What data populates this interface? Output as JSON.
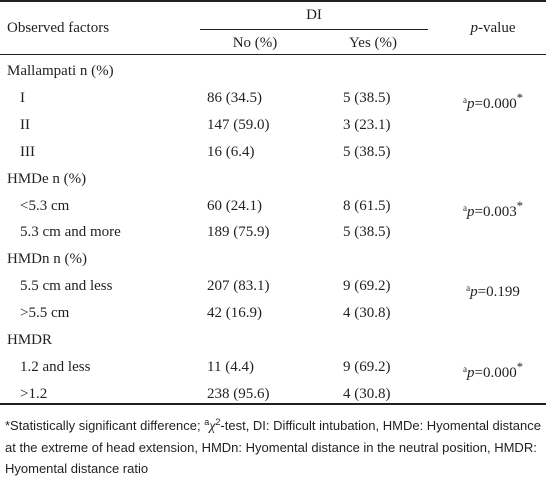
{
  "table": {
    "headers": {
      "observed_factors": "Observed factors",
      "di": "DI",
      "no": "No (%)",
      "yes": "Yes (%)",
      "pvalue_italic": "p",
      "pvalue_rest": "-value"
    },
    "groups": [
      {
        "label": "Mallampati n (%)",
        "rows": [
          {
            "label": "I",
            "no": "86 (34.5)",
            "yes": "5 (38.5)"
          },
          {
            "label": "II",
            "no": "147 (59.0)",
            "yes": "3 (23.1)"
          },
          {
            "label": "III",
            "no": "16 (6.4)",
            "yes": "5 (38.5)"
          }
        ],
        "p": {
          "sup": "a",
          "var": "p",
          "value": "=0.000",
          "star": "*"
        }
      },
      {
        "label": "HMDe n (%)",
        "rows": [
          {
            "label": "<5.3 cm",
            "no": "60 (24.1)",
            "yes": "8 (61.5)"
          },
          {
            "label": "5.3 cm and more",
            "no": "189 (75.9)",
            "yes": "5 (38.5)"
          }
        ],
        "p": {
          "sup": "a",
          "var": "p",
          "value": "=0.003",
          "star": "*"
        }
      },
      {
        "label": "HMDn n (%)",
        "rows": [
          {
            "label": "5.5 cm and less",
            "no": "207 (83.1)",
            "yes": "9 (69.2)"
          },
          {
            "label": ">5.5 cm",
            "no": "42 (16.9)",
            "yes": "4 (30.8)"
          }
        ],
        "p": {
          "sup": "a",
          "var": "p",
          "value": "=0.199",
          "star": ""
        }
      },
      {
        "label": "HMDR",
        "rows": [
          {
            "label": "1.2 and less",
            "no": "11 (4.4)",
            "yes": "9 (69.2)"
          },
          {
            "label": ">1.2",
            "no": "238 (95.6)",
            "yes": "4 (30.8)"
          }
        ],
        "p": {
          "sup": "a",
          "var": "p",
          "value": "=0.000",
          "star": "*"
        }
      }
    ]
  },
  "footnote": {
    "part1": "*Statistically significant difference; ",
    "sup_a": "a",
    "chi": "χ",
    "sup_2": "2",
    "part2": "-test, DI: Difficult intubation, HMDe: Hyomental distance at the extreme of head extension, HMDn:  Hyomental distance in the neutral position, HMDR: Hyomental distance ratio"
  }
}
